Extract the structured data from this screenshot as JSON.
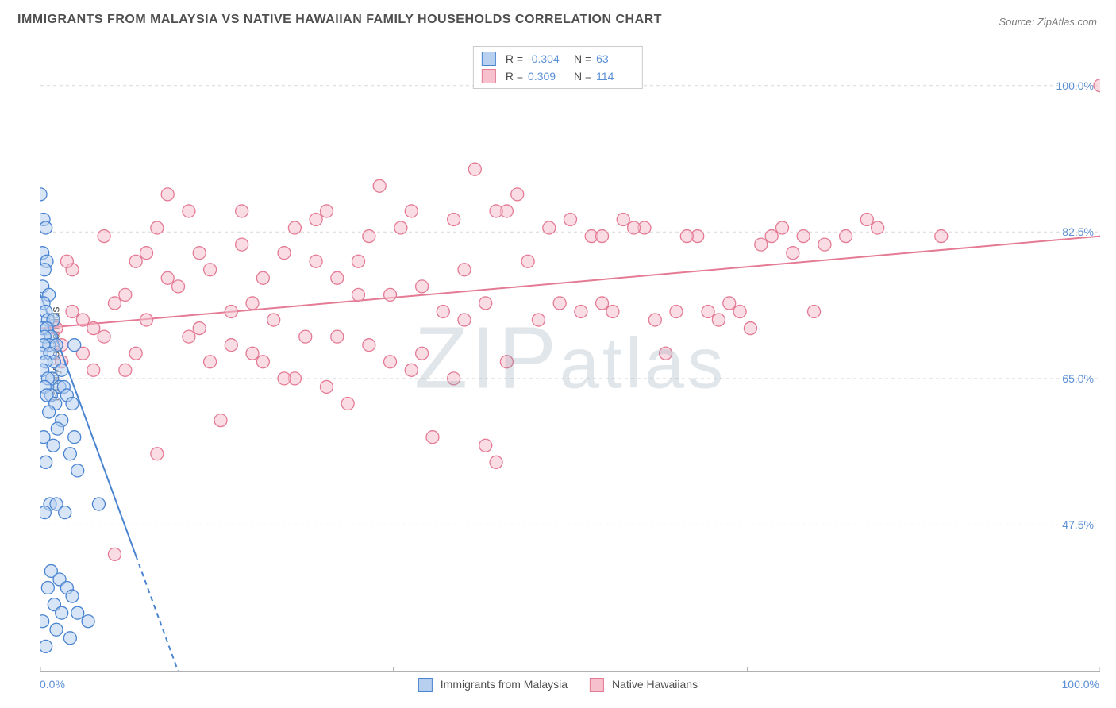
{
  "title": "IMMIGRANTS FROM MALAYSIA VS NATIVE HAWAIIAN FAMILY HOUSEHOLDS CORRELATION CHART",
  "source": "Source: ZipAtlas.com",
  "ylabel": "Family Households",
  "watermark": "ZIPatlas",
  "chart": {
    "type": "scatter",
    "background_color": "#ffffff",
    "axis_color": "#b0b0b0",
    "grid_color": "#d9d9d9",
    "tick_label_color": "#5b8fd6",
    "text_color": "#4f4f4f",
    "xlim": [
      0,
      100
    ],
    "ylim": [
      30,
      105
    ],
    "xticks": [
      0,
      33.3,
      66.7,
      100
    ],
    "xtick_labels": [
      "0.0%",
      "",
      "",
      "100.0%"
    ],
    "yticks": [
      47.5,
      65.0,
      82.5,
      100.0
    ],
    "ytick_labels": [
      "47.5%",
      "65.0%",
      "82.5%",
      "100.0%"
    ],
    "marker_radius": 8,
    "marker_stroke_width": 1.3,
    "trend_line_width": 2,
    "trend_dash_pattern": "6,5",
    "series": [
      {
        "name": "Immigrants from Malaysia",
        "fill": "#b7d0ef",
        "stroke": "#4a84d1",
        "fill_opacity": 0.55,
        "R": "-0.304",
        "N": "63",
        "trend": {
          "x1": 0,
          "y1": 75,
          "x2": 13,
          "y2": 30,
          "solid_until_x": 9
        },
        "points": [
          [
            0,
            87
          ],
          [
            0.3,
            84
          ],
          [
            0.5,
            83
          ],
          [
            0.2,
            80
          ],
          [
            0.6,
            79
          ],
          [
            0.4,
            78
          ],
          [
            0.2,
            76
          ],
          [
            0.8,
            75
          ],
          [
            0.3,
            74
          ],
          [
            0.5,
            73
          ],
          [
            0.7,
            72
          ],
          [
            1.2,
            72
          ],
          [
            0.2,
            71
          ],
          [
            0.6,
            71
          ],
          [
            1.0,
            70
          ],
          [
            0.4,
            70
          ],
          [
            0.8,
            69
          ],
          [
            0.3,
            69
          ],
          [
            1.5,
            69
          ],
          [
            0.1,
            68
          ],
          [
            0.9,
            68
          ],
          [
            1.3,
            67
          ],
          [
            0.5,
            67
          ],
          [
            0.2,
            66
          ],
          [
            2.0,
            66
          ],
          [
            1.1,
            65
          ],
          [
            0.7,
            65
          ],
          [
            1.8,
            64
          ],
          [
            0.4,
            64
          ],
          [
            2.2,
            64
          ],
          [
            1.0,
            63
          ],
          [
            0.6,
            63
          ],
          [
            2.5,
            63
          ],
          [
            1.4,
            62
          ],
          [
            3.0,
            62
          ],
          [
            0.8,
            61
          ],
          [
            2.0,
            60
          ],
          [
            1.6,
            59
          ],
          [
            3.2,
            58
          ],
          [
            0.3,
            58
          ],
          [
            1.2,
            57
          ],
          [
            2.8,
            56
          ],
          [
            0.5,
            55
          ],
          [
            3.5,
            54
          ],
          [
            0.9,
            50
          ],
          [
            1.5,
            50
          ],
          [
            0.4,
            49
          ],
          [
            2.3,
            49
          ],
          [
            5.5,
            50
          ],
          [
            1.0,
            42
          ],
          [
            1.8,
            41
          ],
          [
            2.5,
            40
          ],
          [
            0.7,
            40
          ],
          [
            3.0,
            39
          ],
          [
            1.3,
            38
          ],
          [
            0.2,
            36
          ],
          [
            2.0,
            37
          ],
          [
            3.5,
            37
          ],
          [
            4.5,
            36
          ],
          [
            1.5,
            35
          ],
          [
            2.8,
            34
          ],
          [
            0.5,
            33
          ],
          [
            3.2,
            69
          ]
        ]
      },
      {
        "name": "Native Hawaiians",
        "fill": "#f6c1cd",
        "stroke": "#e47a94",
        "fill_opacity": 0.55,
        "R": "0.309",
        "N": "114",
        "trend": {
          "x1": 0,
          "y1": 71,
          "x2": 100,
          "y2": 82,
          "solid_until_x": 100
        },
        "points": [
          [
            100,
            100
          ],
          [
            85,
            82
          ],
          [
            78,
            84
          ],
          [
            79,
            83
          ],
          [
            74,
            81
          ],
          [
            72,
            82
          ],
          [
            70,
            83
          ],
          [
            68,
            81
          ],
          [
            64,
            72
          ],
          [
            62,
            82
          ],
          [
            60,
            73
          ],
          [
            58,
            72
          ],
          [
            57,
            83
          ],
          [
            55,
            84
          ],
          [
            52,
            82
          ],
          [
            50,
            84
          ],
          [
            48,
            83
          ],
          [
            47,
            72
          ],
          [
            45,
            87
          ],
          [
            44,
            85
          ],
          [
            43,
            55
          ],
          [
            42,
            74
          ],
          [
            41,
            90
          ],
          [
            40,
            78
          ],
          [
            39,
            65
          ],
          [
            38,
            73
          ],
          [
            37,
            58
          ],
          [
            36,
            76
          ],
          [
            35,
            66
          ],
          [
            34,
            83
          ],
          [
            33,
            75
          ],
          [
            32,
            88
          ],
          [
            31,
            69
          ],
          [
            30,
            79
          ],
          [
            29,
            62
          ],
          [
            28,
            77
          ],
          [
            27,
            85
          ],
          [
            26,
            84
          ],
          [
            25,
            70
          ],
          [
            24,
            65
          ],
          [
            23,
            80
          ],
          [
            22,
            72
          ],
          [
            21,
            67
          ],
          [
            20,
            74
          ],
          [
            19,
            81
          ],
          [
            18,
            69
          ],
          [
            17,
            60
          ],
          [
            16,
            78
          ],
          [
            15,
            71
          ],
          [
            14,
            85
          ],
          [
            13,
            76
          ],
          [
            12,
            87
          ],
          [
            11,
            56
          ],
          [
            10,
            80
          ],
          [
            9,
            68
          ],
          [
            8,
            75
          ],
          [
            7,
            44
          ],
          [
            6,
            70
          ],
          [
            5,
            66
          ],
          [
            4,
            72
          ],
          [
            3,
            78
          ],
          [
            2,
            69
          ],
          [
            1.5,
            71
          ],
          [
            53,
            82
          ],
          [
            51,
            73
          ],
          [
            49,
            74
          ],
          [
            46,
            79
          ],
          [
            42,
            57
          ],
          [
            40,
            72
          ],
          [
            39,
            84
          ],
          [
            36,
            68
          ],
          [
            35,
            85
          ],
          [
            33,
            67
          ],
          [
            31,
            82
          ],
          [
            30,
            75
          ],
          [
            28,
            70
          ],
          [
            27,
            64
          ],
          [
            26,
            79
          ],
          [
            24,
            83
          ],
          [
            23,
            65
          ],
          [
            21,
            77
          ],
          [
            20,
            68
          ],
          [
            19,
            85
          ],
          [
            18,
            73
          ],
          [
            16,
            67
          ],
          [
            15,
            80
          ],
          [
            14,
            70
          ],
          [
            12,
            77
          ],
          [
            11,
            83
          ],
          [
            10,
            72
          ],
          [
            9,
            79
          ],
          [
            8,
            66
          ],
          [
            7,
            74
          ],
          [
            6,
            82
          ],
          [
            5,
            71
          ],
          [
            4,
            68
          ],
          [
            3,
            73
          ],
          [
            2.5,
            79
          ],
          [
            2,
            67
          ],
          [
            53,
            74
          ],
          [
            56,
            83
          ],
          [
            59,
            68
          ],
          [
            61,
            82
          ],
          [
            63,
            73
          ],
          [
            65,
            74
          ],
          [
            67,
            71
          ],
          [
            69,
            82
          ],
          [
            71,
            80
          ],
          [
            73,
            73
          ],
          [
            76,
            82
          ],
          [
            66,
            73
          ],
          [
            54,
            73
          ],
          [
            44,
            67
          ],
          [
            43,
            85
          ]
        ]
      }
    ]
  },
  "bottom_legend": [
    {
      "label": "Immigrants from Malaysia",
      "fill": "#b7d0ef",
      "stroke": "#4a84d1"
    },
    {
      "label": "Native Hawaiians",
      "fill": "#f6c1cd",
      "stroke": "#e47a94"
    }
  ]
}
